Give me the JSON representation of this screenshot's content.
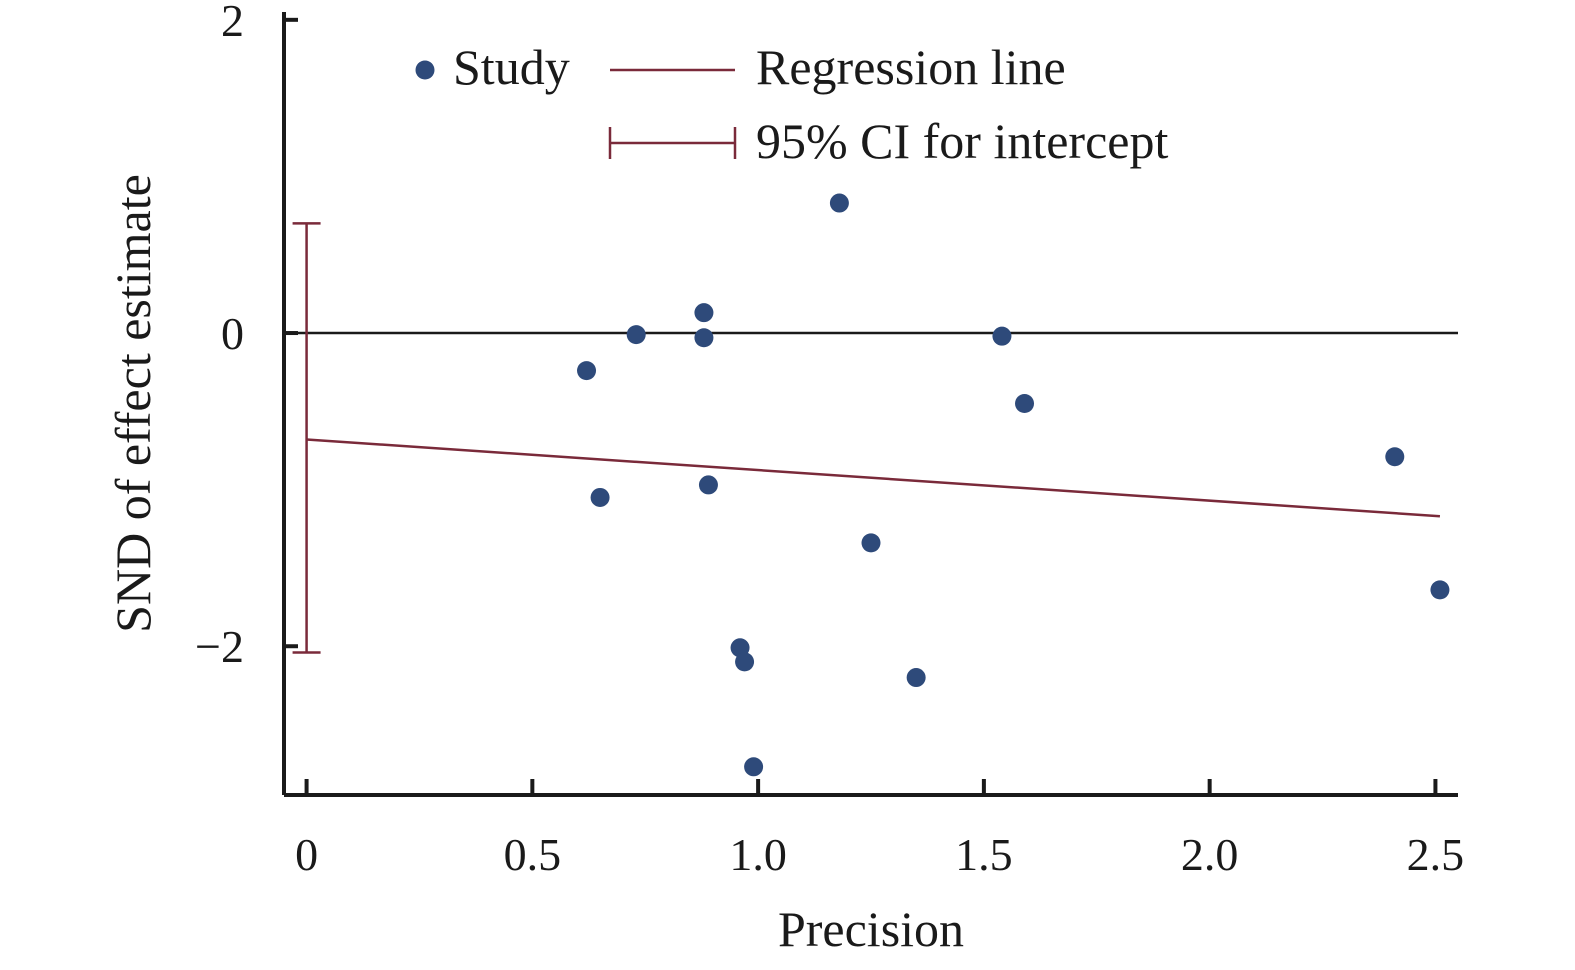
{
  "chart_data": {
    "type": "scatter",
    "xlabel": "Precision",
    "ylabel": "SND of effect estimate",
    "xlim": [
      -0.05,
      2.55
    ],
    "ylim": [
      -2.95,
      2.05
    ],
    "xticks": [
      0,
      0.5,
      1.0,
      1.5,
      2.0,
      2.5
    ],
    "xtick_labels": [
      "0",
      "0.5",
      "1.0",
      "1.5",
      "2.0",
      "2.5"
    ],
    "yticks": [
      -2,
      0,
      2
    ],
    "ytick_labels": [
      "−2",
      "0",
      "2"
    ],
    "grid": false,
    "legend": {
      "position": "top",
      "items": [
        {
          "key": "study",
          "label": "Study"
        },
        {
          "key": "regression",
          "label": "Regression line"
        },
        {
          "key": "ci",
          "label": "95% CI for intercept"
        }
      ]
    },
    "series": [
      {
        "name": "Study",
        "points": [
          {
            "x": 0.62,
            "y": -0.24
          },
          {
            "x": 0.65,
            "y": -1.05
          },
          {
            "x": 0.73,
            "y": -0.01
          },
          {
            "x": 0.88,
            "y": 0.13
          },
          {
            "x": 0.88,
            "y": -0.03
          },
          {
            "x": 0.89,
            "y": -0.97
          },
          {
            "x": 0.96,
            "y": -2.01
          },
          {
            "x": 0.97,
            "y": -2.1
          },
          {
            "x": 0.99,
            "y": -2.77
          },
          {
            "x": 1.18,
            "y": 0.83
          },
          {
            "x": 1.25,
            "y": -1.34
          },
          {
            "x": 1.35,
            "y": -2.2
          },
          {
            "x": 1.54,
            "y": -0.02
          },
          {
            "x": 1.59,
            "y": -0.45
          },
          {
            "x": 2.41,
            "y": -0.79
          },
          {
            "x": 2.51,
            "y": -1.64
          }
        ]
      },
      {
        "name": "Regression line",
        "x": [
          0,
          2.51
        ],
        "y": [
          -0.68,
          -1.17
        ]
      }
    ],
    "intercept_ci": [
      -2.04,
      0.7
    ],
    "reference_line_y": 0,
    "colors": {
      "points": "#2e4a7a",
      "regression": "#7a2a3a",
      "axis": "#1a1a1a"
    }
  }
}
